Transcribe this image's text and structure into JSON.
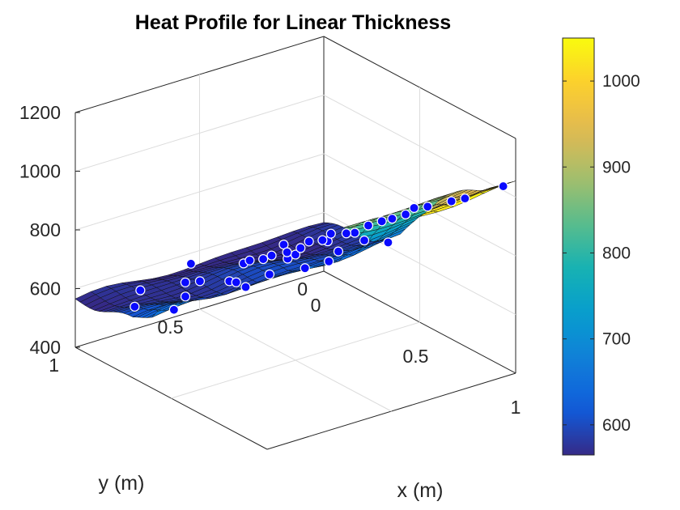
{
  "chart_data": {
    "type": "surface3d",
    "title": "Heat Profile for Linear Thickness",
    "xlabel": "x (m)",
    "ylabel": "y (m)",
    "zlabel": "",
    "xlim": [
      0,
      1
    ],
    "ylim": [
      0,
      1
    ],
    "zlim": [
      400,
      1200
    ],
    "x_ticks": [
      "0",
      "0.5",
      "1"
    ],
    "y_ticks": [
      "0",
      "0.5",
      "1"
    ],
    "z_ticks": [
      "400",
      "600",
      "800",
      "1000",
      "1200"
    ],
    "grid": true,
    "surface": {
      "x": [
        0,
        0.1,
        0.2,
        0.3,
        0.4,
        0.5,
        0.6,
        0.7,
        0.8,
        0.9,
        1.0
      ],
      "z_along_x": [
        560,
        570,
        585,
        600,
        650,
        760,
        850,
        900,
        950,
        1000,
        1040
      ],
      "z_at_y0_offset": 0,
      "colormap": "parula",
      "edge_color": "#000000"
    },
    "scatter": {
      "color": "#0a0aff",
      "edge_color": "#ffffff",
      "description_points": [
        [
          0.02,
          0.55,
          575
        ],
        [
          0.05,
          0.2,
          560
        ],
        [
          0.08,
          0.8,
          570
        ],
        [
          0.1,
          0.4,
          565
        ],
        [
          0.12,
          0.65,
          572
        ],
        [
          0.15,
          0.1,
          580
        ],
        [
          0.18,
          0.9,
          575
        ],
        [
          0.2,
          0.3,
          590
        ],
        [
          0.22,
          0.55,
          585
        ],
        [
          0.25,
          0.75,
          595
        ],
        [
          0.27,
          0.15,
          600
        ],
        [
          0.3,
          0.45,
          610
        ],
        [
          0.32,
          0.85,
          600
        ],
        [
          0.35,
          0.25,
          620
        ],
        [
          0.37,
          0.6,
          630
        ],
        [
          0.4,
          0.05,
          650
        ],
        [
          0.42,
          0.4,
          660
        ],
        [
          0.45,
          0.7,
          700
        ],
        [
          0.47,
          0.2,
          720
        ],
        [
          0.5,
          0.5,
          760
        ],
        [
          0.52,
          0.9,
          780
        ],
        [
          0.55,
          0.3,
          800
        ],
        [
          0.57,
          0.65,
          820
        ],
        [
          0.6,
          0.1,
          850
        ],
        [
          0.62,
          0.45,
          860
        ],
        [
          0.65,
          0.8,
          870
        ],
        [
          0.68,
          0.25,
          880
        ],
        [
          0.7,
          0.6,
          900
        ],
        [
          0.73,
          0.05,
          905
        ],
        [
          0.75,
          0.4,
          920
        ],
        [
          0.78,
          0.75,
          930
        ],
        [
          0.8,
          0.2,
          950
        ],
        [
          0.83,
          0.55,
          960
        ],
        [
          0.85,
          0.9,
          970
        ],
        [
          0.88,
          0.35,
          990
        ],
        [
          0.9,
          0.7,
          1000
        ],
        [
          0.93,
          0.15,
          1010
        ],
        [
          0.95,
          0.5,
          1030
        ],
        [
          0.98,
          0.85,
          1040
        ],
        [
          1.0,
          0.05,
          1050
        ]
      ]
    },
    "colorbar": {
      "range": [
        565,
        1050
      ],
      "ticks": [
        "600",
        "700",
        "800",
        "900",
        "1000"
      ],
      "tick_values": [
        600,
        700,
        800,
        900,
        1000
      ],
      "colormap": "parula"
    }
  }
}
